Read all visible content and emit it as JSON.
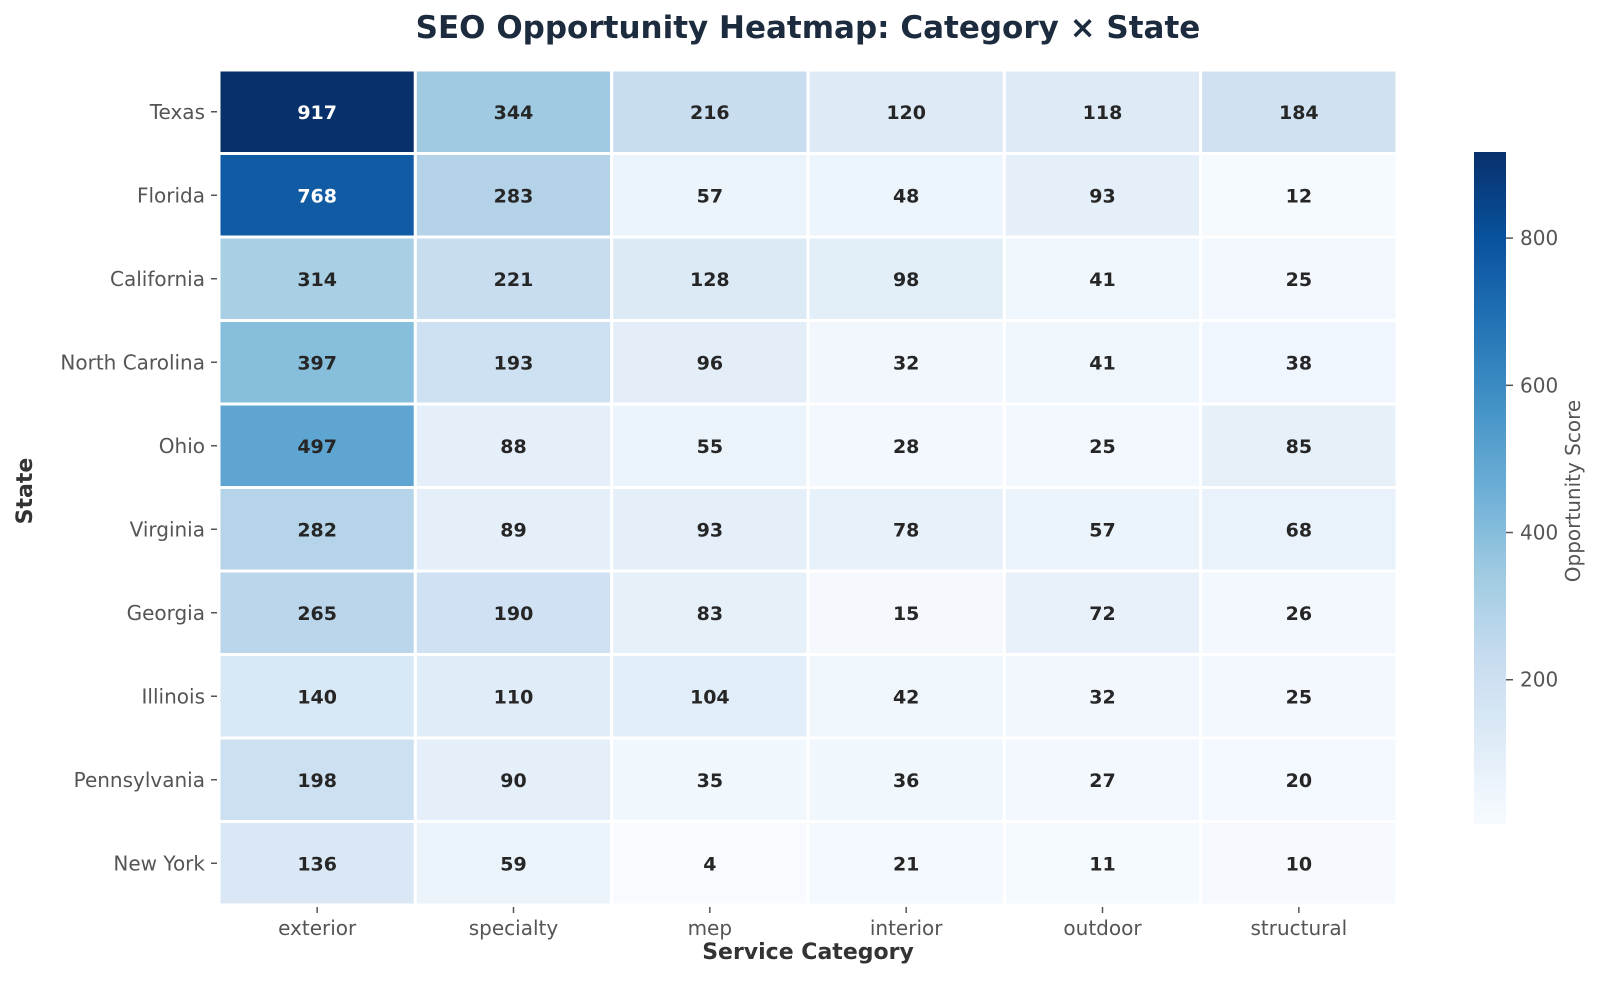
{
  "chart_data": {
    "type": "heatmap",
    "title": "SEO Opportunity Heatmap: Category × State",
    "xlabel": "Service Category",
    "ylabel": "State",
    "colorbar_label": "Opportunity Score",
    "colormap": "Blues",
    "colorbar_ticks": [
      200,
      400,
      600,
      800
    ],
    "value_range": [
      4,
      917
    ],
    "categories": [
      "exterior",
      "specialty",
      "mep",
      "interior",
      "outdoor",
      "structural"
    ],
    "rows": [
      "Texas",
      "Florida",
      "California",
      "North Carolina",
      "Ohio",
      "Virginia",
      "Georgia",
      "Illinois",
      "Pennsylvania",
      "New York"
    ],
    "values": [
      [
        917,
        344,
        216,
        120,
        118,
        184
      ],
      [
        768,
        283,
        57,
        48,
        93,
        12
      ],
      [
        314,
        221,
        128,
        98,
        41,
        25
      ],
      [
        397,
        193,
        96,
        32,
        41,
        38
      ],
      [
        497,
        88,
        55,
        28,
        25,
        85
      ],
      [
        282,
        89,
        93,
        78,
        57,
        68
      ],
      [
        265,
        190,
        83,
        15,
        72,
        26
      ],
      [
        140,
        110,
        104,
        42,
        32,
        25
      ],
      [
        198,
        90,
        35,
        36,
        27,
        20
      ],
      [
        136,
        59,
        4,
        21,
        11,
        10
      ]
    ]
  }
}
